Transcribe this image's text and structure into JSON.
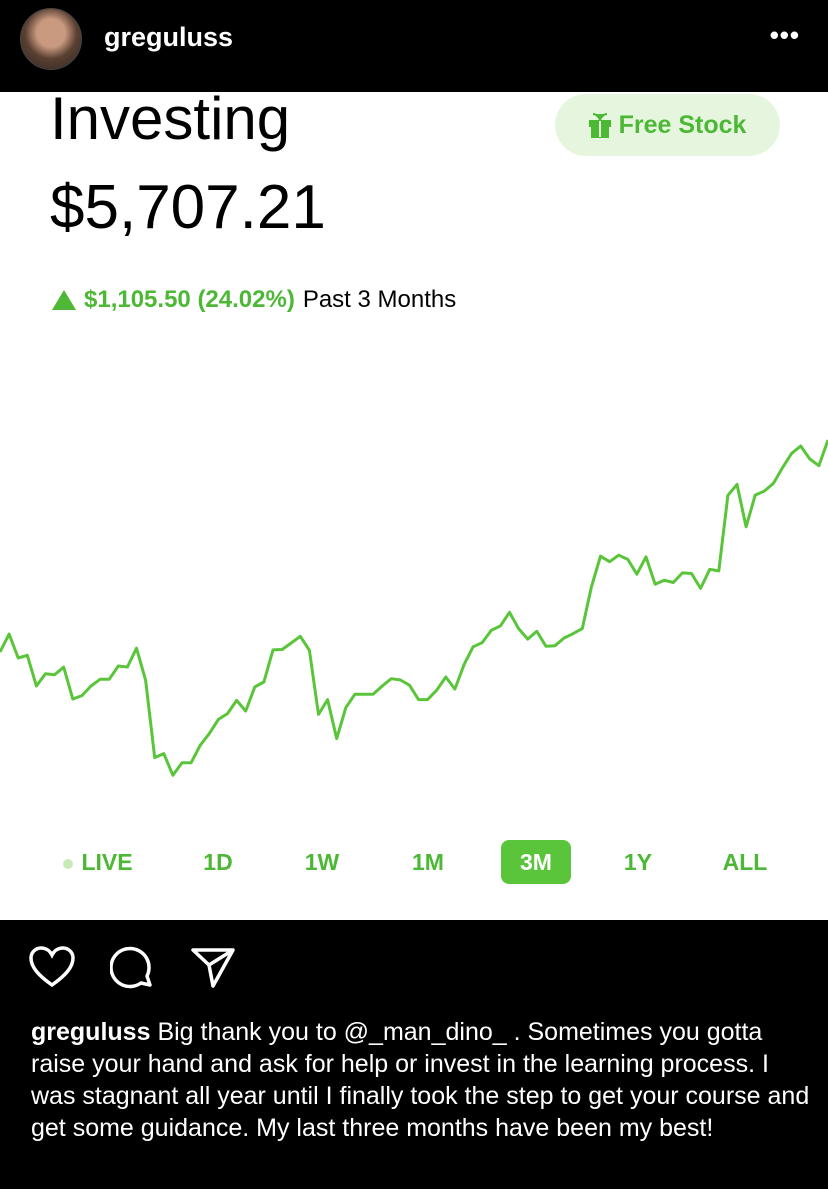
{
  "post": {
    "username": "greguluss",
    "more_icon": "more-horizontal-icon",
    "caption": "Big thank you to @_man_dino_ . Sometimes you gotta raise your hand and ask for help or invest in the learning process. I was stagnant all year until I finally took the step to get your course and get some guidance. My last three months have been my best!"
  },
  "app": {
    "title": "Investing",
    "price": "$5,707.21",
    "free_stock": "Free Stock",
    "change": "$1,105.50 (24.02%)",
    "period": "Past 3 Months",
    "ranges": [
      "LIVE",
      "1D",
      "1W",
      "1M",
      "3M",
      "1Y",
      "ALL"
    ],
    "active_range": "3M",
    "colors": {
      "accent": "#5ac53a",
      "pill_bg": "#e6f6de"
    }
  },
  "chart_data": {
    "type": "line",
    "color": "#5ac53a",
    "axes": "none",
    "grid": false,
    "values": [
      4603,
      4696,
      4572,
      4586,
      4426,
      4490,
      4485,
      4524,
      4358,
      4376,
      4426,
      4461,
      4461,
      4530,
      4525,
      4623,
      4456,
      4053,
      4074,
      3961,
      4026,
      4026,
      4117,
      4178,
      4252,
      4282,
      4351,
      4296,
      4421,
      4447,
      4614,
      4616,
      4650,
      4685,
      4612,
      4278,
      4355,
      4152,
      4313,
      4383,
      4383,
      4383,
      4426,
      4464,
      4457,
      4430,
      4355,
      4355,
      4404,
      4473,
      4410,
      4537,
      4630,
      4652,
      4716,
      4739,
      4810,
      4725,
      4670,
      4711,
      4633,
      4636,
      4676,
      4699,
      4725,
      4942,
      5102,
      5073,
      5107,
      5085,
      5008,
      5099,
      4956,
      4977,
      4965,
      5015,
      5012,
      4934,
      5033,
      5026,
      5419,
      5476,
      5255,
      5420,
      5441,
      5481,
      5563,
      5637,
      5676,
      5608,
      5573,
      5707
    ]
  }
}
